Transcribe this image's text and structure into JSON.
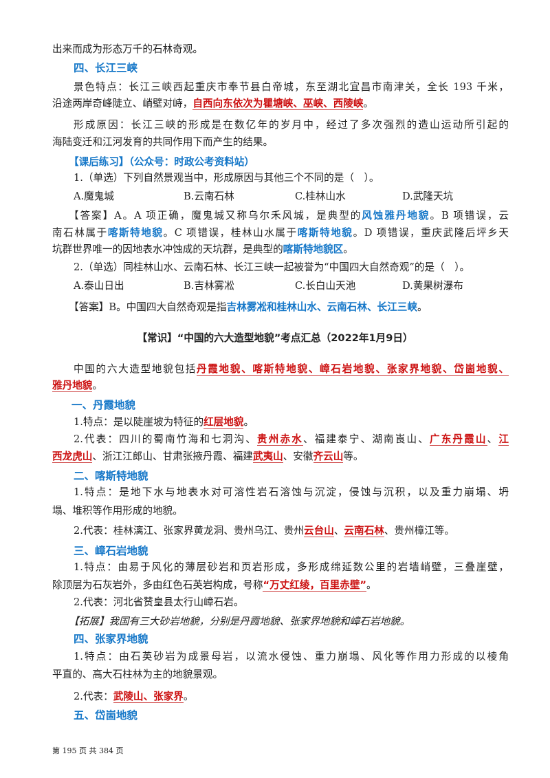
{
  "colors": {
    "heading": "#1577c8",
    "emphasis": "#cc1111"
  },
  "lines": [
    {
      "segs": [
        {
          "t": "出来而成为形态万千的石林奇观。",
          "s": "n"
        }
      ]
    },
    {
      "segs": [
        {
          "t": "四、长江三峡",
          "s": "h"
        }
      ]
    },
    {
      "segs": [
        {
          "t": "景色特点：长江三峡西起重庆市奉节县白帝城，东至湖北宜昌市南津关，全长 193 千米，",
          "s": "n"
        }
      ]
    },
    {
      "segs": [
        {
          "t": "沿途两岸奇峰陡立、峭壁对峙，",
          "s": "n"
        },
        {
          "t": "自西向东依次为瞿塘峡、巫峡、西陵峡",
          "s": "red"
        },
        {
          "t": "。",
          "s": "n"
        }
      ]
    },
    {
      "segs": [
        {
          "t": "形成原因：长江三峡的形成是在数亿年的岁月中，经过了多次强烈的造山运动所引起的",
          "s": "n"
        }
      ]
    },
    {
      "segs": [
        {
          "t": "海陆变迁和江河发育的共同作用下而产生的结果。",
          "s": "n"
        }
      ]
    },
    {
      "segs": [
        {
          "t": "【课后练习】（公众号：时政公考资料站）",
          "s": "blue"
        }
      ]
    },
    {
      "segs": [
        {
          "t": "1.（单选）下列自然景观当中，形成原因与其他三个不同的是（　）。",
          "s": "n"
        }
      ]
    },
    {
      "segs": [
        {
          "t": "A.魔鬼城",
          "s": "o"
        },
        {
          "t": "B.云南石林",
          "s": "o"
        },
        {
          "t": "C.桂林山水",
          "s": "o"
        },
        {
          "t": "D.武隆天坑",
          "s": "o"
        }
      ]
    },
    {
      "segs": [
        {
          "t": "【答案】A。A 项正确，魔鬼城又称乌尔禾风城，是典型的",
          "s": "n"
        },
        {
          "t": "风蚀雅丹地貌",
          "s": "blue"
        },
        {
          "t": "。B 项错误，云",
          "s": "n"
        }
      ]
    },
    {
      "segs": [
        {
          "t": "南石林属于",
          "s": "n"
        },
        {
          "t": "喀斯特地貌",
          "s": "blue"
        },
        {
          "t": "。C 项错误，桂林山水属于",
          "s": "n"
        },
        {
          "t": "喀斯特地貌",
          "s": "blue"
        },
        {
          "t": "。D 项错误，重庆武隆后坪乡天",
          "s": "n"
        }
      ]
    },
    {
      "segs": [
        {
          "t": "坑群世界唯一的因地表水冲蚀成的天坑群，是典型的",
          "s": "n"
        },
        {
          "t": "喀斯特地貌区",
          "s": "blue"
        },
        {
          "t": "。",
          "s": "n"
        }
      ]
    },
    {
      "segs": [
        {
          "t": "2.（单选）同桂林山水、云南石林、长江三峡一起被誉为“中国四大自然奇观”的是（　）。",
          "s": "n"
        }
      ]
    },
    {
      "segs": [
        {
          "t": "A.泰山日出",
          "s": "o"
        },
        {
          "t": "B.吉林雾凇",
          "s": "o"
        },
        {
          "t": "C.长白山天池",
          "s": "o"
        },
        {
          "t": "D.黄果树瀑布",
          "s": "o"
        }
      ]
    },
    {
      "segs": [
        {
          "t": "【答案】B。中国四大自然奇观是指",
          "s": "n"
        },
        {
          "t": "吉林雾凇和桂林山水、云南石林、长江三峡",
          "s": "blue"
        },
        {
          "t": "。",
          "s": "n"
        }
      ]
    },
    {
      "segs": [
        {
          "t": "【常识】“中国的六大造型地貌”考点汇总（2022年1月9日）",
          "s": "title"
        }
      ]
    },
    {
      "segs": [
        {
          "t": "中国的六大造型地貌包括",
          "s": "n"
        },
        {
          "t": "丹霞地貌、喀斯特地貌、嶂石岩地貌、张家界地貌、岱崮地貌、",
          "s": "red"
        }
      ]
    },
    {
      "segs": [
        {
          "t": "雅丹地貌",
          "s": "red"
        },
        {
          "t": "。",
          "s": "n"
        }
      ]
    },
    {
      "segs": [
        {
          "t": "一、丹霞地貌",
          "s": "h"
        }
      ]
    },
    {
      "segs": [
        {
          "t": "1.特点：是以陡崖坡为特征的",
          "s": "n"
        },
        {
          "t": "红层地貌",
          "s": "red"
        },
        {
          "t": "。",
          "s": "n"
        }
      ]
    },
    {
      "segs": [
        {
          "t": "2.代表：四川的蜀南竹海和七洞沟、",
          "s": "n"
        },
        {
          "t": "贵州赤水",
          "s": "red"
        },
        {
          "t": "、福建泰宁、湖南崀山、",
          "s": "n"
        },
        {
          "t": "广东丹霞山",
          "s": "red"
        },
        {
          "t": "、",
          "s": "n"
        },
        {
          "t": "江",
          "s": "red"
        }
      ]
    },
    {
      "segs": [
        {
          "t": "西龙虎山",
          "s": "red"
        },
        {
          "t": "、浙江江郎山、甘肃张掖丹霞、福建",
          "s": "n"
        },
        {
          "t": "武夷山",
          "s": "red"
        },
        {
          "t": "、安徽",
          "s": "n"
        },
        {
          "t": "齐云山",
          "s": "red"
        },
        {
          "t": "等。",
          "s": "n"
        }
      ]
    },
    {
      "segs": [
        {
          "t": "二、喀斯特地貌",
          "s": "h"
        }
      ]
    },
    {
      "segs": [
        {
          "t": "1.特点：是地下水与地表水对可溶性岩石溶蚀与沉淀，侵蚀与沉积，以及重力崩塌、坍",
          "s": "n"
        }
      ]
    },
    {
      "segs": [
        {
          "t": "塌、堆积等作用形成的地貌。",
          "s": "n"
        }
      ]
    },
    {
      "segs": [
        {
          "t": "2.代表：桂林漓江、张家界黄龙洞、贵州乌江、贵州",
          "s": "n"
        },
        {
          "t": "云台山",
          "s": "red"
        },
        {
          "t": "、",
          "s": "n"
        },
        {
          "t": "云南石林",
          "s": "red"
        },
        {
          "t": "、贵州樟江等。",
          "s": "n"
        }
      ]
    },
    {
      "segs": [
        {
          "t": "三、嶂石岩地貌",
          "s": "h"
        }
      ]
    },
    {
      "segs": [
        {
          "t": "1.特点：由易于风化的薄层砂岩和页岩形成，多形成绵延数公里的岩墙峭壁，三叠崖壁，",
          "s": "n"
        }
      ]
    },
    {
      "segs": [
        {
          "t": "除顶层为石灰岩外，多由红色石英岩构成，号称",
          "s": "n"
        },
        {
          "t": "“万丈红绫，百里赤壁”",
          "s": "red"
        },
        {
          "t": "。",
          "s": "n"
        }
      ]
    },
    {
      "segs": [
        {
          "t": "2.代表：河北省赞皇县太行山嶂石岩。",
          "s": "n"
        }
      ]
    },
    {
      "segs": [
        {
          "t": "【拓展】我国有三大砂岩地貌，分别是丹霞地貌、张家界地貌和嶂石岩地貌。",
          "s": "kai"
        }
      ]
    },
    {
      "segs": [
        {
          "t": "四、张家界地貌",
          "s": "h"
        }
      ]
    },
    {
      "segs": [
        {
          "t": "1.特点：由石英砂岩为成景母岩，以流水侵蚀、重力崩塌、风化等作用力形成的以棱角",
          "s": "n"
        }
      ]
    },
    {
      "segs": [
        {
          "t": "平直的、高大石柱林为主的地貌景观。",
          "s": "n"
        }
      ]
    },
    {
      "segs": [
        {
          "t": "2.代表：",
          "s": "n"
        },
        {
          "t": "武陵山、张家界",
          "s": "red"
        },
        {
          "t": "。",
          "s": "n"
        }
      ]
    },
    {
      "segs": [
        {
          "t": "五、岱崮地貌",
          "s": "h"
        }
      ]
    }
  ],
  "footer": {
    "text": "第 195 页 共 384 页"
  }
}
